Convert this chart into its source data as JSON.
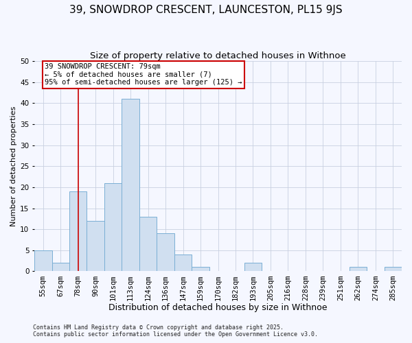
{
  "title": "39, SNOWDROP CRESCENT, LAUNCESTON, PL15 9JS",
  "subtitle": "Size of property relative to detached houses in Withnoe",
  "xlabel": "Distribution of detached houses by size in Withnoe",
  "ylabel": "Number of detached properties",
  "bar_color": "#d0dff0",
  "bar_edge_color": "#7aafd4",
  "background_color": "#f5f7ff",
  "categories": [
    "55sqm",
    "67sqm",
    "78sqm",
    "90sqm",
    "101sqm",
    "113sqm",
    "124sqm",
    "136sqm",
    "147sqm",
    "159sqm",
    "170sqm",
    "182sqm",
    "193sqm",
    "205sqm",
    "216sqm",
    "228sqm",
    "239sqm",
    "251sqm",
    "262sqm",
    "274sqm",
    "285sqm"
  ],
  "values": [
    5,
    2,
    19,
    12,
    21,
    41,
    13,
    9,
    4,
    1,
    0,
    0,
    2,
    0,
    0,
    0,
    0,
    0,
    1,
    0,
    1
  ],
  "ylim": [
    0,
    50
  ],
  "yticks": [
    0,
    5,
    10,
    15,
    20,
    25,
    30,
    35,
    40,
    45,
    50
  ],
  "vline_x_index": 2,
  "vline_color": "#cc0000",
  "annotation_text": "39 SNOWDROP CRESCENT: 79sqm\n← 5% of detached houses are smaller (7)\n95% of semi-detached houses are larger (125) →",
  "annotation_box_color": "white",
  "annotation_box_edge_color": "#cc0000",
  "footer_line1": "Contains HM Land Registry data © Crown copyright and database right 2025.",
  "footer_line2": "Contains public sector information licensed under the Open Government Licence v3.0.",
  "grid_color": "#c8d0e0",
  "title_fontsize": 11,
  "subtitle_fontsize": 9.5,
  "xlabel_fontsize": 9,
  "ylabel_fontsize": 8,
  "tick_fontsize": 7.5,
  "annotation_fontsize": 7.5,
  "footer_fontsize": 6
}
